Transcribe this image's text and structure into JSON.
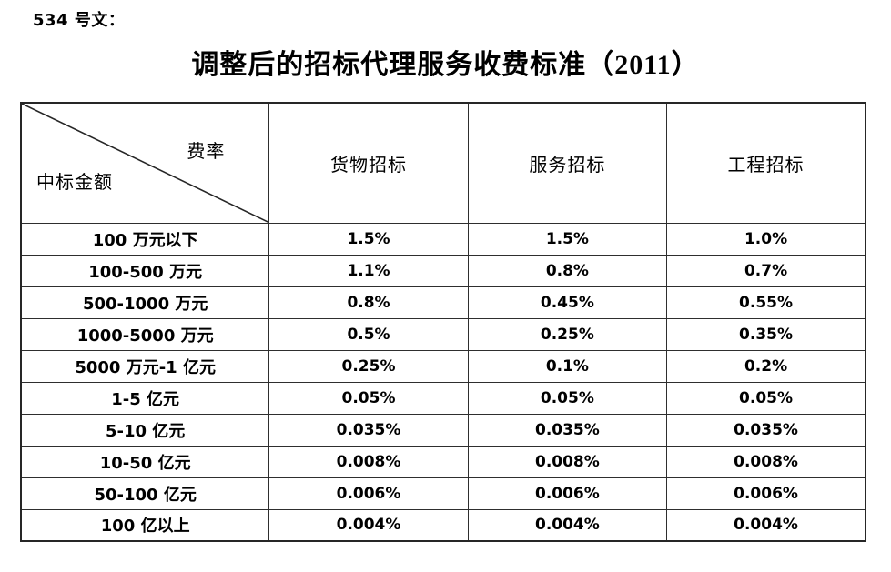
{
  "page": {
    "doc_label": "534 号文：",
    "title": "调整后的招标代理服务收费标准（2011）"
  },
  "table": {
    "corner": {
      "top_right": "费率",
      "bottom_left": "中标金额"
    },
    "columns": [
      "货物招标",
      "服务招标",
      "工程招标"
    ],
    "rows": [
      {
        "label": "100 万元以下",
        "values": [
          "1.5%",
          "1.5%",
          "1.0%"
        ]
      },
      {
        "label": "100-500 万元",
        "values": [
          "1.1%",
          "0.8%",
          "0.7%"
        ]
      },
      {
        "label": "500-1000 万元",
        "values": [
          "0.8%",
          "0.45%",
          "0.55%"
        ]
      },
      {
        "label": "1000-5000 万元",
        "values": [
          "0.5%",
          "0.25%",
          "0.35%"
        ]
      },
      {
        "label": "5000 万元-1 亿元",
        "values": [
          "0.25%",
          "0.1%",
          "0.2%"
        ]
      },
      {
        "label": "1-5 亿元",
        "values": [
          "0.05%",
          "0.05%",
          "0.05%"
        ]
      },
      {
        "label": "5-10 亿元",
        "values": [
          "0.035%",
          "0.035%",
          "0.035%"
        ]
      },
      {
        "label": "10-50 亿元",
        "values": [
          "0.008%",
          "0.008%",
          "0.008%"
        ]
      },
      {
        "label": "50-100 亿元",
        "values": [
          "0.006%",
          "0.006%",
          "0.006%"
        ]
      },
      {
        "label": "100 亿以上",
        "values": [
          "0.004%",
          "0.004%",
          "0.004%"
        ]
      }
    ]
  },
  "colors": {
    "background": "#ffffff",
    "text": "#000000",
    "border": "#262626"
  }
}
